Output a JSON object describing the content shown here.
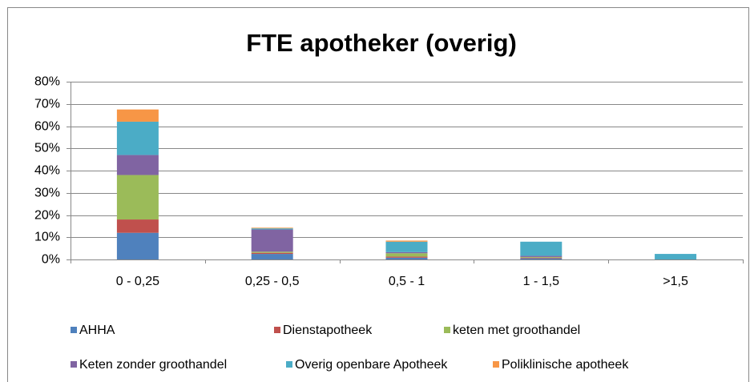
{
  "chart_data": {
    "type": "stacked_bar",
    "title": "FTE apotheker (overig)",
    "categories": [
      "0 - 0,25",
      "0,25 - 0,5",
      "0,5 - 1",
      "1 - 1,5",
      ">1,5"
    ],
    "series": [
      {
        "name": "AHHA",
        "color": "#4f81bd",
        "values": [
          12,
          2.5,
          0.8,
          0.5,
          0
        ]
      },
      {
        "name": "Dienstapotheek",
        "color": "#c0504d",
        "values": [
          6,
          0.5,
          0.5,
          0.3,
          0
        ]
      },
      {
        "name": "keten met groothandel",
        "color": "#9bbb59",
        "values": [
          20,
          0.5,
          1.5,
          0.3,
          0
        ]
      },
      {
        "name": "Keten zonder groothandel",
        "color": "#8064a2",
        "values": [
          9,
          10,
          0.5,
          0.5,
          0
        ]
      },
      {
        "name": "Overig openbare Apotheek",
        "color": "#4bacc6",
        "values": [
          15,
          0.5,
          4.7,
          6.4,
          2.5
        ]
      },
      {
        "name": "Poliklinische apotheek",
        "color": "#f79646",
        "values": [
          5.5,
          0.3,
          0.5,
          0,
          0
        ]
      }
    ],
    "ylim": [
      0,
      80
    ],
    "yticks": [
      {
        "value": 0,
        "label": "0%"
      },
      {
        "value": 10,
        "label": "10%"
      },
      {
        "value": 20,
        "label": "20%"
      },
      {
        "value": 30,
        "label": "30%"
      },
      {
        "value": 40,
        "label": "40%"
      },
      {
        "value": 50,
        "label": "50%"
      },
      {
        "value": 60,
        "label": "60%"
      },
      {
        "value": 70,
        "label": "70%"
      },
      {
        "value": 80,
        "label": "80%"
      }
    ],
    "grid": true,
    "legend": "bottom"
  }
}
